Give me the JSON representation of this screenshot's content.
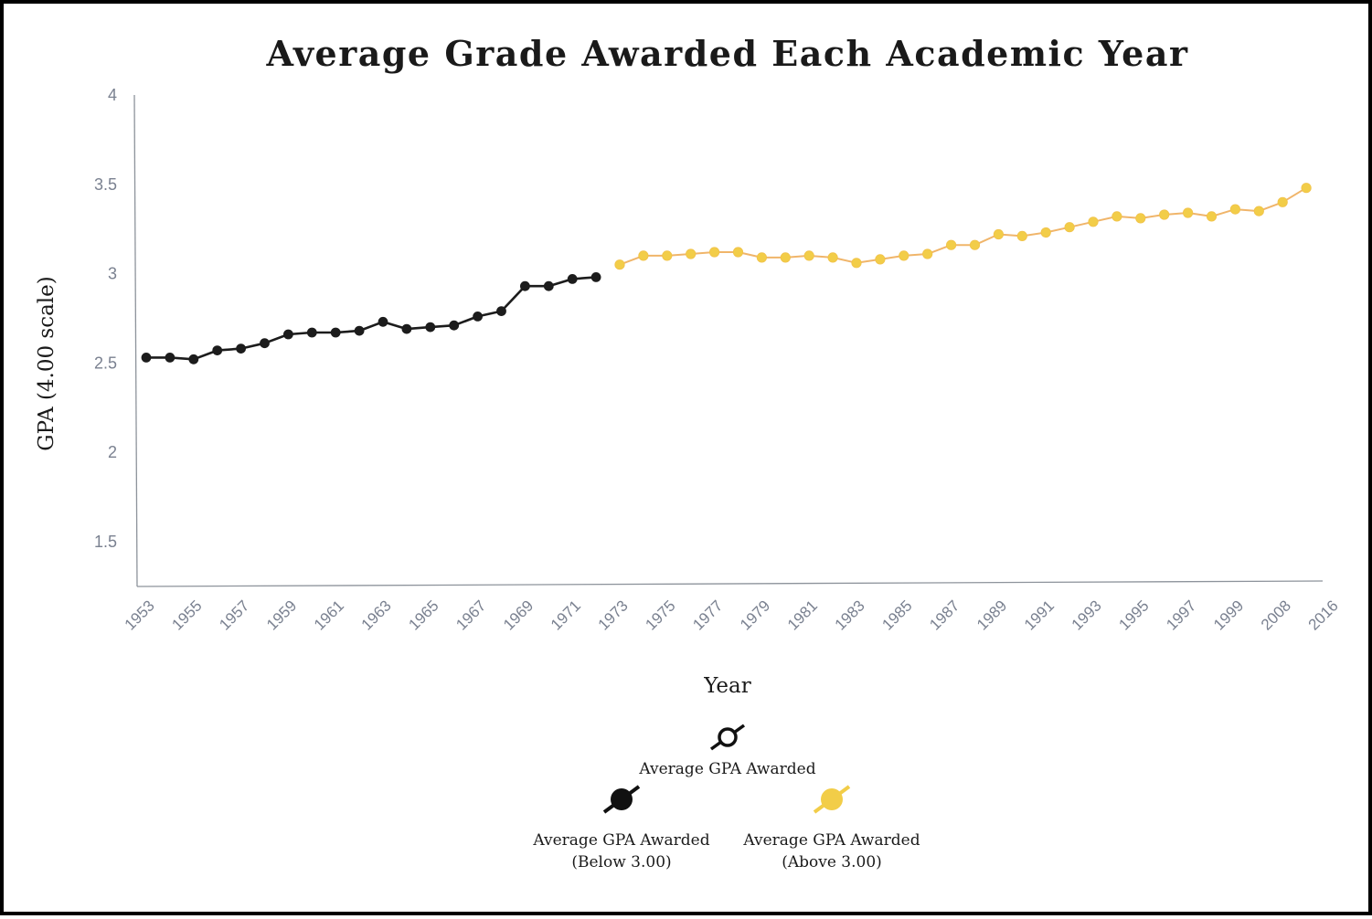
{
  "chart_data": {
    "type": "line",
    "title": "Average Grade Awarded Each Academic Year",
    "xlabel": "Year",
    "ylabel": "GPA (4.00 scale)",
    "ylim": [
      1.25,
      4
    ],
    "y_ticks": [
      "4",
      "3.5",
      "3",
      "2.5",
      "2",
      "1.5"
    ],
    "x_tick_labels": [
      "1953",
      "1955",
      "1957",
      "1959",
      "1961",
      "1963",
      "1965",
      "1967",
      "1969",
      "1971",
      "1973",
      "1975",
      "1977",
      "1979",
      "1981",
      "1983",
      "1985",
      "1987",
      "1989",
      "1991",
      "1993",
      "1995",
      "1997",
      "1999",
      "2008",
      "2016"
    ],
    "grid": false,
    "legend_position": "bottom",
    "series": [
      {
        "name": "Average GPA Awarded (Below 3.00)",
        "color": "#1c1c1c",
        "x": [
          1953,
          1954,
          1955,
          1956,
          1957,
          1958,
          1959,
          1960,
          1961,
          1962,
          1963,
          1964,
          1965,
          1966,
          1967,
          1968,
          1969,
          1970,
          1971,
          1972
        ],
        "values": [
          2.53,
          2.53,
          2.52,
          2.57,
          2.58,
          2.61,
          2.66,
          2.67,
          2.67,
          2.68,
          2.73,
          2.69,
          2.7,
          2.71,
          2.76,
          2.79,
          2.93,
          2.93,
          2.97,
          2.98
        ]
      },
      {
        "name": "Average GPA Awarded (Above 3.00)",
        "color": "#f2cd48",
        "line_color": "#f0b56a",
        "x": [
          1973,
          1974,
          1975,
          1976,
          1977,
          1978,
          1979,
          1980,
          1981,
          1982,
          1983,
          1984,
          1985,
          1986,
          1987,
          1988,
          1989,
          1990,
          1991,
          1992,
          1993,
          1994,
          1995,
          1996,
          1997,
          1998,
          1999,
          2000,
          2008,
          2016
        ],
        "values": [
          3.05,
          3.1,
          3.1,
          3.11,
          3.12,
          3.12,
          3.09,
          3.09,
          3.1,
          3.09,
          3.06,
          3.08,
          3.1,
          3.11,
          3.16,
          3.16,
          3.22,
          3.21,
          3.23,
          3.26,
          3.29,
          3.32,
          3.31,
          3.33,
          3.34,
          3.32,
          3.36,
          3.35,
          3.4,
          3.48
        ]
      }
    ]
  },
  "legend": {
    "main_label": "Average GPA Awarded",
    "below": {
      "line1": "Average GPA Awarded",
      "line2": "(Below 3.00)"
    },
    "above": {
      "line1": "Average GPA Awarded",
      "line2": "(Above 3.00)"
    }
  }
}
